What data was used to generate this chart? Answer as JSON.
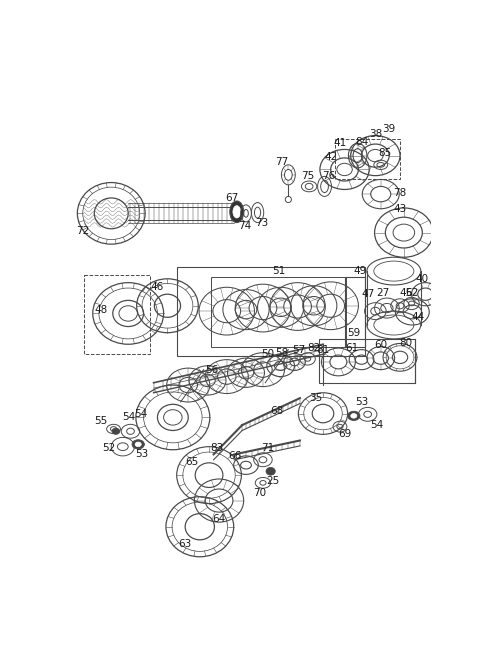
{
  "bg_color": "#ffffff",
  "line_color": "#4a4a4a",
  "text_color": "#1a1a1a",
  "fig_width": 4.8,
  "fig_height": 6.55,
  "dpi": 100
}
